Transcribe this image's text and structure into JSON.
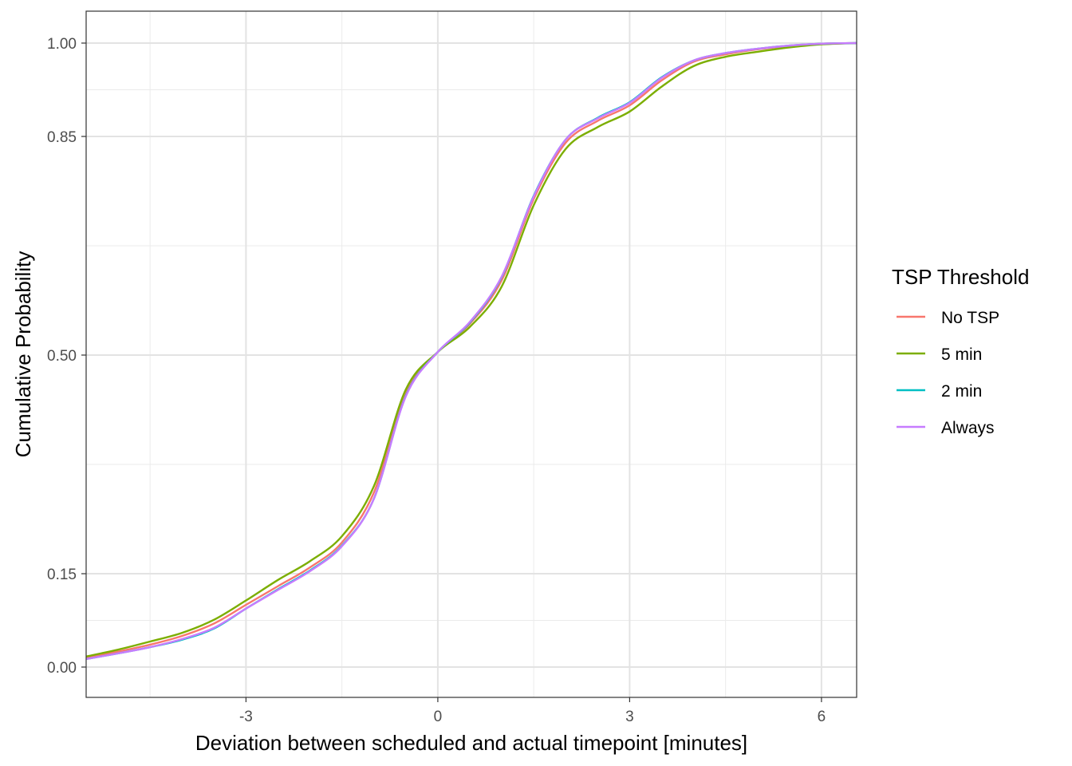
{
  "chart_data": {
    "type": "line",
    "xlabel": "Deviation between scheduled and actual timepoint [minutes]",
    "ylabel": "Cumulative Probability",
    "xlim": [
      -5.5,
      6.55
    ],
    "ylim": [
      -0.045,
      1.045
    ],
    "x_ticks": [
      -3,
      0,
      3,
      6
    ],
    "x_tick_labels": [
      "-3",
      "0",
      "3",
      "6"
    ],
    "x_minor_ticks": [
      -4.5,
      -1.5,
      1.5,
      4.5
    ],
    "y_ticks": [
      0.0,
      0.15,
      0.5,
      0.85,
      1.0
    ],
    "y_tick_labels": [
      "0.00",
      "0.15",
      "0.50",
      "0.85",
      "1.00"
    ],
    "y_minor_ticks": [
      0.075,
      0.325,
      0.675,
      0.925
    ],
    "grid": true,
    "y_scale": "quantile-stretched (ticks at 0, 0.15, 0.5, 0.85, 1)",
    "legend": {
      "title": "TSP Threshold",
      "position": "right",
      "items": [
        "No TSP",
        "5 min",
        "2 min",
        "Always"
      ]
    },
    "series": [
      {
        "name": "No TSP",
        "color": "#F8766D",
        "points": [
          [
            -5.5,
            0.015
          ],
          [
            -5.0,
            0.025
          ],
          [
            -4.5,
            0.036
          ],
          [
            -4.0,
            0.05
          ],
          [
            -3.5,
            0.07
          ],
          [
            -3.0,
            0.1
          ],
          [
            -2.5,
            0.13
          ],
          [
            -2.0,
            0.16
          ],
          [
            -1.5,
            0.2
          ],
          [
            -1.0,
            0.28
          ],
          [
            -0.5,
            0.44
          ],
          [
            0.0,
            0.505
          ],
          [
            0.5,
            0.55
          ],
          [
            1.0,
            0.62
          ],
          [
            1.5,
            0.75
          ],
          [
            2.0,
            0.84
          ],
          [
            2.5,
            0.875
          ],
          [
            3.0,
            0.9
          ],
          [
            3.5,
            0.94
          ],
          [
            4.0,
            0.97
          ],
          [
            4.5,
            0.982
          ],
          [
            5.0,
            0.99
          ],
          [
            5.5,
            0.995
          ],
          [
            6.0,
            0.999
          ],
          [
            6.55,
            1.0
          ]
        ]
      },
      {
        "name": "5 min",
        "color": "#7CAE00",
        "points": [
          [
            -5.5,
            0.017
          ],
          [
            -5.0,
            0.028
          ],
          [
            -4.5,
            0.041
          ],
          [
            -4.0,
            0.055
          ],
          [
            -3.5,
            0.076
          ],
          [
            -3.0,
            0.107
          ],
          [
            -2.5,
            0.14
          ],
          [
            -2.0,
            0.17
          ],
          [
            -1.5,
            0.21
          ],
          [
            -1.0,
            0.29
          ],
          [
            -0.5,
            0.445
          ],
          [
            0.0,
            0.505
          ],
          [
            0.5,
            0.545
          ],
          [
            1.0,
            0.61
          ],
          [
            1.5,
            0.74
          ],
          [
            2.0,
            0.83
          ],
          [
            2.5,
            0.865
          ],
          [
            3.0,
            0.89
          ],
          [
            3.5,
            0.93
          ],
          [
            4.0,
            0.963
          ],
          [
            4.5,
            0.978
          ],
          [
            5.0,
            0.986
          ],
          [
            5.5,
            0.993
          ],
          [
            6.0,
            0.998
          ],
          [
            6.55,
            1.0
          ]
        ]
      },
      {
        "name": "2 min",
        "color": "#00BFC4",
        "points": [
          [
            -5.5,
            0.013
          ],
          [
            -5.0,
            0.022
          ],
          [
            -4.5,
            0.032
          ],
          [
            -4.0,
            0.044
          ],
          [
            -3.5,
            0.062
          ],
          [
            -3.0,
            0.094
          ],
          [
            -2.5,
            0.125
          ],
          [
            -2.0,
            0.155
          ],
          [
            -1.5,
            0.195
          ],
          [
            -1.0,
            0.27
          ],
          [
            -0.5,
            0.435
          ],
          [
            0.0,
            0.505
          ],
          [
            0.5,
            0.552
          ],
          [
            1.0,
            0.625
          ],
          [
            1.5,
            0.755
          ],
          [
            2.0,
            0.845
          ],
          [
            2.5,
            0.88
          ],
          [
            3.0,
            0.905
          ],
          [
            3.5,
            0.945
          ],
          [
            4.0,
            0.972
          ],
          [
            4.5,
            0.984
          ],
          [
            5.0,
            0.991
          ],
          [
            5.5,
            0.996
          ],
          [
            6.0,
            0.999
          ],
          [
            6.55,
            1.0
          ]
        ]
      },
      {
        "name": "Always",
        "color": "#C77CFF",
        "points": [
          [
            -5.5,
            0.013
          ],
          [
            -5.0,
            0.022
          ],
          [
            -4.5,
            0.032
          ],
          [
            -4.0,
            0.045
          ],
          [
            -3.5,
            0.063
          ],
          [
            -3.0,
            0.094
          ],
          [
            -2.5,
            0.124
          ],
          [
            -2.0,
            0.154
          ],
          [
            -1.5,
            0.194
          ],
          [
            -1.0,
            0.27
          ],
          [
            -0.5,
            0.434
          ],
          [
            0.0,
            0.505
          ],
          [
            0.5,
            0.553
          ],
          [
            1.0,
            0.626
          ],
          [
            1.5,
            0.754
          ],
          [
            2.0,
            0.845
          ],
          [
            2.5,
            0.879
          ],
          [
            3.0,
            0.904
          ],
          [
            3.5,
            0.944
          ],
          [
            4.0,
            0.972
          ],
          [
            4.5,
            0.984
          ],
          [
            5.0,
            0.991
          ],
          [
            5.5,
            0.996
          ],
          [
            6.0,
            0.999
          ],
          [
            6.55,
            1.0
          ]
        ]
      }
    ]
  }
}
